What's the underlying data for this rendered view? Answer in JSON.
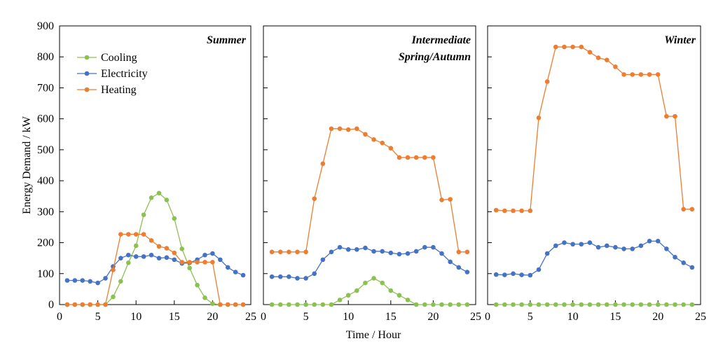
{
  "chart_data": {
    "type": "line",
    "ylabel": "Energy Demand / kW",
    "xlabel": "Time / Hour",
    "ylim": [
      0,
      900
    ],
    "xlim": [
      0,
      25
    ],
    "yticks": [
      0,
      100,
      200,
      300,
      400,
      500,
      600,
      700,
      800,
      900
    ],
    "xticks": [
      0,
      5,
      10,
      15,
      20,
      25
    ],
    "legend": {
      "placement": "top-left (first panel)",
      "entries": [
        "Cooling",
        "Electricity",
        "Heating"
      ]
    },
    "colors": {
      "Cooling": "#8cc152",
      "Electricity": "#4472c4",
      "Heating": "#ed7d31"
    },
    "x": [
      1,
      2,
      3,
      4,
      5,
      6,
      7,
      8,
      9,
      10,
      11,
      12,
      13,
      14,
      15,
      16,
      17,
      18,
      19,
      20,
      21,
      22,
      23,
      24
    ],
    "panels": [
      {
        "title": "Summer",
        "series": [
          {
            "name": "Cooling",
            "values": [
              0,
              0,
              0,
              0,
              0,
              0,
              25,
              75,
              135,
              190,
              290,
              345,
              360,
              338,
              278,
              180,
              118,
              63,
              22,
              3,
              0,
              0,
              0,
              0
            ]
          },
          {
            "name": "Electricity",
            "values": [
              78,
              78,
              78,
              75,
              70,
              85,
              123,
              150,
              160,
              155,
              155,
              160,
              150,
              152,
              145,
              133,
              135,
              145,
              160,
              165,
              145,
              120,
              105,
              95
            ]
          },
          {
            "name": "Heating",
            "values": [
              0,
              0,
              0,
              0,
              0,
              0,
              112,
              227,
              227,
              227,
              227,
              207,
              188,
              182,
              167,
              137,
              137,
              137,
              137,
              137,
              0,
              0,
              0,
              0
            ]
          }
        ]
      },
      {
        "title": "Intermediate Spring/Autumn",
        "title_lines": [
          "Intermediate",
          "Spring/Autumn"
        ],
        "series": [
          {
            "name": "Cooling",
            "values": [
              0,
              0,
              0,
              0,
              0,
              0,
              0,
              0,
              15,
              30,
              45,
              70,
              85,
              70,
              45,
              30,
              15,
              0,
              0,
              0,
              0,
              0,
              0,
              0
            ]
          },
          {
            "name": "Electricity",
            "values": [
              90,
              90,
              90,
              85,
              85,
              100,
              145,
              170,
              185,
              178,
              178,
              183,
              172,
              172,
              167,
              163,
              165,
              172,
              185,
              185,
              165,
              138,
              120,
              105
            ]
          },
          {
            "name": "Heating",
            "values": [
              170,
              170,
              170,
              170,
              170,
              342,
              455,
              568,
              568,
              565,
              568,
              550,
              533,
              522,
              505,
              475,
              475,
              475,
              475,
              475,
              338,
              340,
              170,
              170
            ]
          }
        ]
      },
      {
        "title": "Winter",
        "series": [
          {
            "name": "Cooling",
            "values": [
              0,
              0,
              0,
              0,
              0,
              0,
              0,
              0,
              0,
              0,
              0,
              0,
              0,
              0,
              0,
              0,
              0,
              0,
              0,
              0,
              0,
              0,
              0,
              0
            ]
          },
          {
            "name": "Electricity",
            "values": [
              97,
              96,
              100,
              96,
              95,
              113,
              165,
              190,
              200,
              195,
              195,
              200,
              185,
              190,
              185,
              180,
              180,
              190,
              205,
              205,
              180,
              153,
              135,
              120
            ]
          },
          {
            "name": "Heating",
            "values": [
              305,
              303,
              303,
              303,
              303,
              603,
              720,
              832,
              832,
              832,
              832,
              815,
              797,
              790,
              768,
              743,
              743,
              743,
              743,
              743,
              608,
              608,
              308,
              308
            ]
          }
        ]
      }
    ]
  }
}
